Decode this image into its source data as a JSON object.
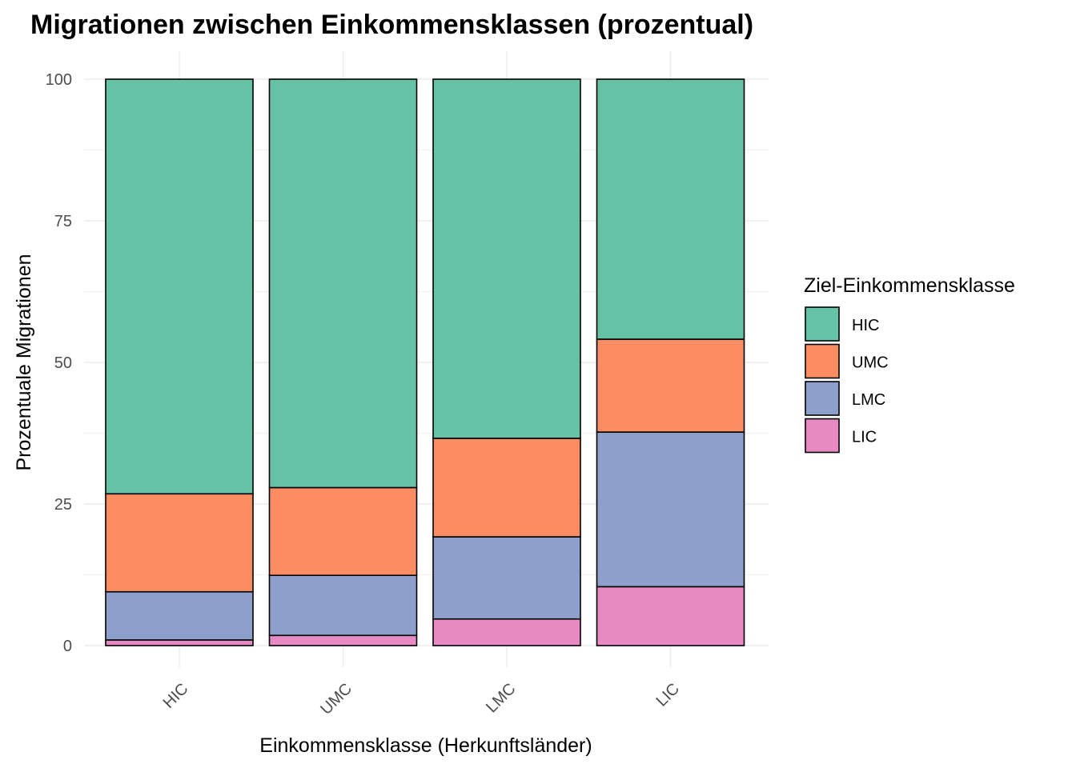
{
  "chart_data": {
    "type": "bar",
    "stacked": true,
    "title": "Migrationen zwischen Einkommensklassen (prozentual)",
    "xlabel": "Einkommensklasse (Herkunftsländer)",
    "ylabel": "Prozentuale Migrationen",
    "ylim": [
      0,
      100
    ],
    "yticks": [
      "0",
      "25",
      "50",
      "75",
      "100"
    ],
    "categories": [
      "HIC",
      "UMC",
      "LMC",
      "LIC"
    ],
    "legend_title": "Ziel-Einkommensklasse",
    "legend_position": "right",
    "grid": true,
    "series": [
      {
        "name": "HIC",
        "color": "#66c2a5",
        "values": [
          73.2,
          72.1,
          63.4,
          45.9
        ]
      },
      {
        "name": "UMC",
        "color": "#fc8d62",
        "values": [
          17.3,
          15.5,
          17.4,
          16.4
        ]
      },
      {
        "name": "LMC",
        "color": "#8da0cb",
        "values": [
          8.5,
          10.6,
          14.5,
          27.3
        ]
      },
      {
        "name": "LIC",
        "color": "#e78ac3",
        "values": [
          1.0,
          1.8,
          4.7,
          10.4
        ]
      }
    ]
  }
}
